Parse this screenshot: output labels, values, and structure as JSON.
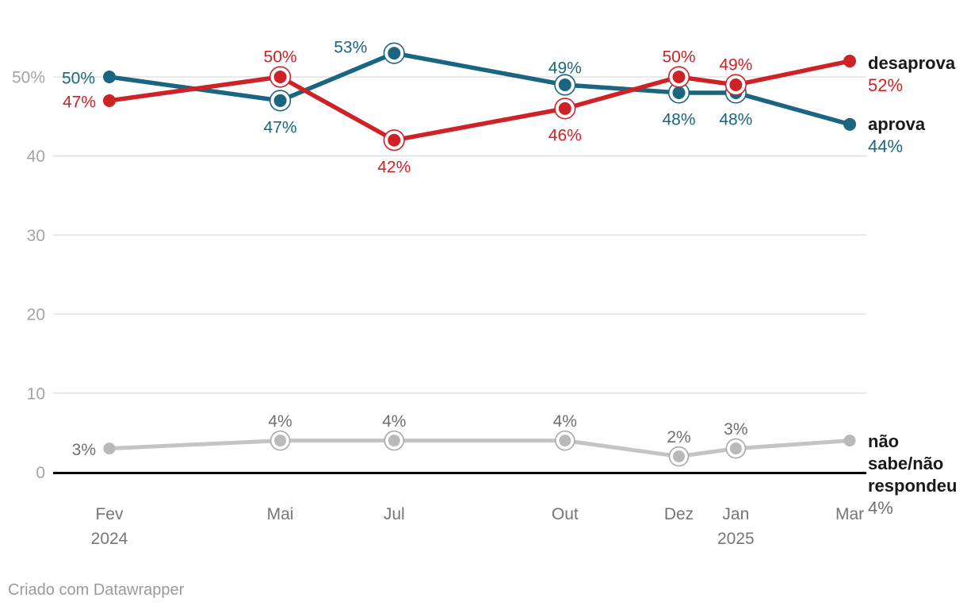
{
  "chart_data": {
    "type": "line",
    "title": "",
    "unit": "%",
    "x_axis": {
      "kind": "time-months",
      "ticks": [
        {
          "m": 0,
          "label": "Fev",
          "sub": "2024"
        },
        {
          "m": 3,
          "label": "Mai",
          "sub": ""
        },
        {
          "m": 5,
          "label": "Jul",
          "sub": ""
        },
        {
          "m": 8,
          "label": "Out",
          "sub": ""
        },
        {
          "m": 10,
          "label": "Dez",
          "sub": ""
        },
        {
          "m": 11,
          "label": "Jan",
          "sub": "2025"
        },
        {
          "m": 13,
          "label": "Mar",
          "sub": ""
        }
      ]
    },
    "categories": [
      "Fev 2024",
      "Mai",
      "Jul",
      "Out",
      "Dez",
      "Jan 2025",
      "Mar"
    ],
    "x_months": [
      0,
      3,
      5,
      8,
      10,
      11,
      13
    ],
    "y_axis": {
      "ylim": [
        0,
        55
      ],
      "ticks": [
        {
          "v": 50,
          "label": "50%"
        },
        {
          "v": 40,
          "label": "40"
        },
        {
          "v": 30,
          "label": "30"
        },
        {
          "v": 20,
          "label": "20"
        },
        {
          "v": 10,
          "label": "10"
        },
        {
          "v": 0,
          "label": "0"
        }
      ],
      "grid": true
    },
    "series": [
      {
        "key": "nao_sabe",
        "name": "não sabe/não respondeu",
        "color": "#c4c4c4",
        "dot_color": "#b9b9b9",
        "ring_color": "#a9a9a9",
        "label_color": "#6f6f6f",
        "values": [
          3,
          4,
          4,
          4,
          2,
          3,
          4
        ]
      },
      {
        "key": "aprova",
        "name": "aprova",
        "color": "#1a6580",
        "dot_color": "#1a6580",
        "ring_color": "#1a6580",
        "label_color": "#1a6580",
        "values": [
          50,
          47,
          53,
          49,
          48,
          48,
          44
        ]
      },
      {
        "key": "desaprova",
        "name": "desaprova",
        "color": "#ce2227",
        "dot_color": "#ce2227",
        "ring_color": "#ce2227",
        "label_color": "#ce2227",
        "values": [
          47,
          50,
          42,
          46,
          50,
          49,
          52
        ]
      }
    ],
    "legend_position": "right-of-last-point"
  },
  "legend": {
    "desaprova": {
      "label": "desaprova",
      "value": "52%"
    },
    "aprova": {
      "label": "aprova",
      "value": "44%"
    },
    "nao_sabe": {
      "label": "não\nsabe/não\nrespondeu",
      "value": "4%"
    }
  },
  "footer": {
    "text": "Criado com Datawrapper"
  }
}
